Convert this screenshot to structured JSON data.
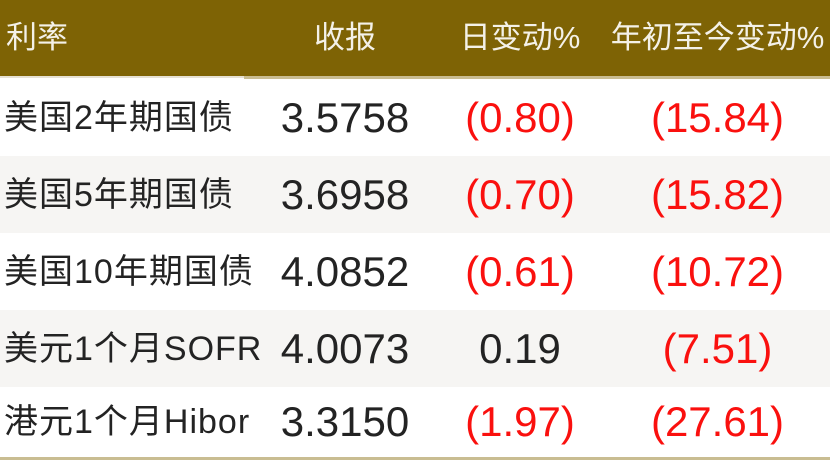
{
  "table": {
    "header": {
      "rate": "利率",
      "close": "收报",
      "daily_change": "日变动%",
      "ytd_change": "年初至今变动%"
    },
    "rows": [
      {
        "label": "美国2年期国债",
        "close": "3.5758",
        "daily_change": "(0.80)",
        "daily_negative": true,
        "ytd_change": "(15.84)",
        "ytd_negative": true
      },
      {
        "label": "美国5年期国债",
        "close": "3.6958",
        "daily_change": "(0.70)",
        "daily_negative": true,
        "ytd_change": "(15.82)",
        "ytd_negative": true
      },
      {
        "label": "美国10年期国债",
        "close": "4.0852",
        "daily_change": "(0.61)",
        "daily_negative": true,
        "ytd_change": "(10.72)",
        "ytd_negative": true
      },
      {
        "label": "美元1个月SOFR",
        "close": "4.0073",
        "daily_change": "0.19",
        "daily_negative": false,
        "ytd_change": "(7.51)",
        "ytd_negative": true
      },
      {
        "label": "港元1个月Hibor",
        "close": "3.3150",
        "daily_change": "(1.97)",
        "daily_negative": true,
        "ytd_change": "(27.61)",
        "ytd_negative": true
      }
    ]
  },
  "colors": {
    "header_bg": "#7e6305",
    "header_text": "#f4f1e8",
    "row_alt_bg": "#f6f5f3",
    "text": "#232323",
    "negative": "#fa100e",
    "table_border": "#c9bd92"
  }
}
